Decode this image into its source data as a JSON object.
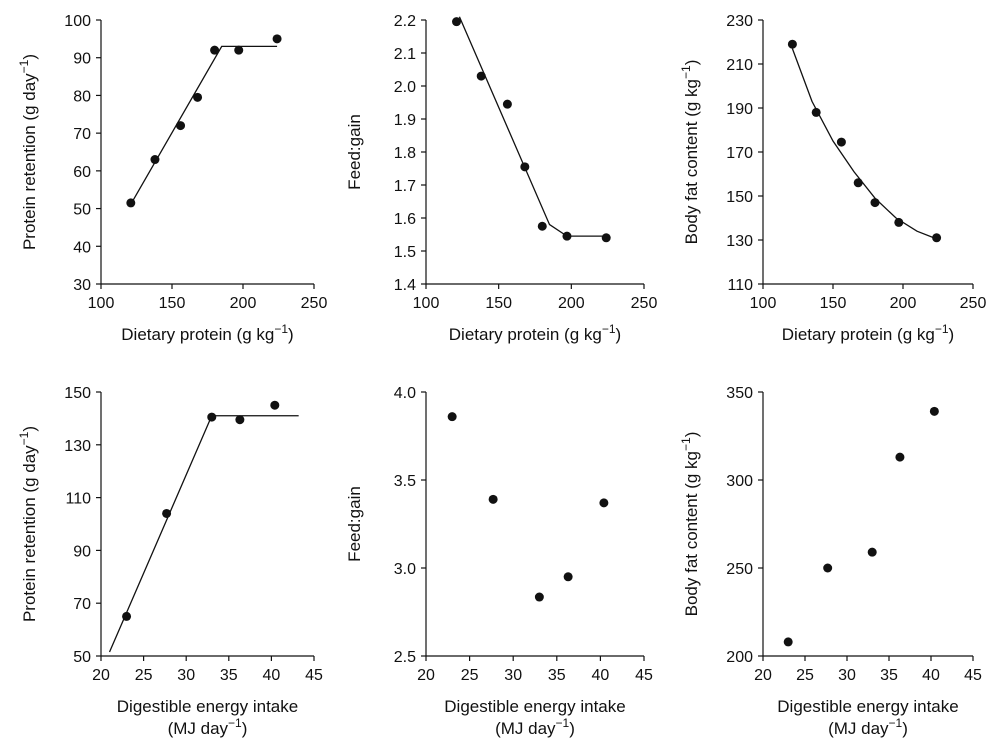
{
  "chart_data": [
    {
      "type": "scatter",
      "xlabel": "Dietary protein (g kg",
      "xlabel_sup": "−1",
      "xlabel_end": ")",
      "ylabel": "Protein retention (g day",
      "ylabel_sup": "−1",
      "ylabel_end": ")",
      "xlim": [
        100,
        250
      ],
      "ylim": [
        30,
        100
      ],
      "xticks": [
        100,
        150,
        200,
        250
      ],
      "yticks": [
        30,
        40,
        50,
        60,
        70,
        80,
        90,
        100
      ],
      "xtick_labels": [
        "100",
        "150",
        "200",
        "250"
      ],
      "ytick_labels": [
        "30",
        "40",
        "50",
        "60",
        "70",
        "80",
        "90",
        "100"
      ],
      "points": [
        {
          "x": 121,
          "y": 51.5
        },
        {
          "x": 138,
          "y": 63
        },
        {
          "x": 156,
          "y": 72
        },
        {
          "x": 168,
          "y": 79.5
        },
        {
          "x": 180,
          "y": 92
        },
        {
          "x": 197,
          "y": 92
        },
        {
          "x": 224,
          "y": 95
        }
      ],
      "fit_line": [
        {
          "x": 120,
          "y": 50.5
        },
        {
          "x": 185,
          "y": 93
        },
        {
          "x": 224,
          "y": 93
        }
      ]
    },
    {
      "type": "scatter",
      "xlabel": "Dietary protein (g kg",
      "xlabel_sup": "−1",
      "xlabel_end": ")",
      "ylabel": "Feed:gain",
      "ylabel_sup": "",
      "ylabel_end": "",
      "xlim": [
        100,
        250
      ],
      "ylim": [
        1.4,
        2.2
      ],
      "xticks": [
        100,
        150,
        200,
        250
      ],
      "yticks": [
        1.4,
        1.5,
        1.6,
        1.7,
        1.8,
        1.9,
        2.0,
        2.1,
        2.2
      ],
      "xtick_labels": [
        "100",
        "150",
        "200",
        "250"
      ],
      "ytick_labels": [
        "1.4",
        "1.5",
        "1.6",
        "1.7",
        "1.8",
        "1.9",
        "2.0",
        "2.1",
        "2.2"
      ],
      "points": [
        {
          "x": 121,
          "y": 2.195
        },
        {
          "x": 138,
          "y": 2.03
        },
        {
          "x": 156,
          "y": 1.945
        },
        {
          "x": 168,
          "y": 1.755
        },
        {
          "x": 180,
          "y": 1.575
        },
        {
          "x": 197,
          "y": 1.545
        },
        {
          "x": 224,
          "y": 1.54
        }
      ],
      "fit_line": [
        {
          "x": 123,
          "y": 2.21
        },
        {
          "x": 185,
          "y": 1.58
        },
        {
          "x": 197,
          "y": 1.545
        },
        {
          "x": 224,
          "y": 1.545
        }
      ]
    },
    {
      "type": "scatter",
      "xlabel": "Dietary protein (g kg",
      "xlabel_sup": "−1",
      "xlabel_end": ")",
      "ylabel": "Body fat content (g kg",
      "ylabel_sup": "−1",
      "ylabel_end": ")",
      "xlim": [
        100,
        250
      ],
      "ylim": [
        110,
        230
      ],
      "xticks": [
        100,
        150,
        200,
        250
      ],
      "yticks": [
        110,
        130,
        150,
        170,
        190,
        210,
        230
      ],
      "xtick_labels": [
        "100",
        "150",
        "200",
        "250"
      ],
      "ytick_labels": [
        "110",
        "130",
        "150",
        "170",
        "190",
        "210",
        "230"
      ],
      "points": [
        {
          "x": 121,
          "y": 219
        },
        {
          "x": 138,
          "y": 188
        },
        {
          "x": 156,
          "y": 174.5
        },
        {
          "x": 168,
          "y": 156
        },
        {
          "x": 180,
          "y": 147
        },
        {
          "x": 197,
          "y": 138
        },
        {
          "x": 224,
          "y": 131
        }
      ],
      "fit_line": [
        {
          "x": 121,
          "y": 217
        },
        {
          "x": 135,
          "y": 193
        },
        {
          "x": 150,
          "y": 175
        },
        {
          "x": 165,
          "y": 161
        },
        {
          "x": 180,
          "y": 149
        },
        {
          "x": 195,
          "y": 140
        },
        {
          "x": 210,
          "y": 134
        },
        {
          "x": 224,
          "y": 130.5
        }
      ]
    },
    {
      "type": "scatter",
      "xlabel": "Digestible energy intake",
      "xlabel_line2": "(MJ day",
      "xlabel_sup": "−1",
      "xlabel_end": ")",
      "ylabel": "Protein retention (g day",
      "ylabel_sup": "−1",
      "ylabel_end": ")",
      "xlim": [
        20,
        45
      ],
      "ylim": [
        50,
        150
      ],
      "xticks": [
        20,
        25,
        30,
        35,
        40,
        45
      ],
      "yticks": [
        50,
        70,
        90,
        110,
        130,
        150
      ],
      "xtick_labels": [
        "20",
        "25",
        "30",
        "35",
        "40",
        "45"
      ],
      "ytick_labels": [
        "50",
        "70",
        "90",
        "110",
        "130",
        "150"
      ],
      "points": [
        {
          "x": 23,
          "y": 65
        },
        {
          "x": 27.7,
          "y": 104
        },
        {
          "x": 33,
          "y": 140.5
        },
        {
          "x": 36.3,
          "y": 139.5
        },
        {
          "x": 40.4,
          "y": 145
        }
      ],
      "fit_line": [
        {
          "x": 21,
          "y": 51.5
        },
        {
          "x": 33,
          "y": 141
        },
        {
          "x": 43.2,
          "y": 141
        }
      ]
    },
    {
      "type": "scatter",
      "xlabel": "Digestible energy intake",
      "xlabel_line2": "(MJ day",
      "xlabel_sup": "−1",
      "xlabel_end": ")",
      "ylabel": "Feed:gain",
      "ylabel_sup": "",
      "ylabel_end": "",
      "xlim": [
        20,
        45
      ],
      "ylim": [
        2.5,
        4.0
      ],
      "xticks": [
        20,
        25,
        30,
        35,
        40,
        45
      ],
      "yticks": [
        2.5,
        3.0,
        3.5,
        4.0
      ],
      "xtick_labels": [
        "20",
        "25",
        "30",
        "35",
        "40",
        "45"
      ],
      "ytick_labels": [
        "2.5",
        "3.0",
        "3.5",
        "4.0"
      ],
      "points": [
        {
          "x": 23,
          "y": 3.86
        },
        {
          "x": 27.7,
          "y": 3.39
        },
        {
          "x": 33,
          "y": 2.835
        },
        {
          "x": 36.3,
          "y": 2.95
        },
        {
          "x": 40.4,
          "y": 3.37
        }
      ],
      "fit_line": []
    },
    {
      "type": "scatter",
      "xlabel": "Digestible energy intake",
      "xlabel_line2": "(MJ day",
      "xlabel_sup": "−1",
      "xlabel_end": ")",
      "ylabel": "Body fat content (g kg",
      "ylabel_sup": "−1",
      "ylabel_end": ")",
      "xlim": [
        20,
        45
      ],
      "ylim": [
        200,
        350
      ],
      "xticks": [
        20,
        25,
        30,
        35,
        40,
        45
      ],
      "yticks": [
        200,
        250,
        300,
        350
      ],
      "xtick_labels": [
        "20",
        "25",
        "30",
        "35",
        "40",
        "45"
      ],
      "ytick_labels": [
        "200",
        "250",
        "300",
        "350"
      ],
      "points": [
        {
          "x": 23,
          "y": 208
        },
        {
          "x": 27.7,
          "y": 250
        },
        {
          "x": 33,
          "y": 259
        },
        {
          "x": 36.3,
          "y": 313
        },
        {
          "x": 40.4,
          "y": 339
        }
      ],
      "fit_line": []
    }
  ]
}
